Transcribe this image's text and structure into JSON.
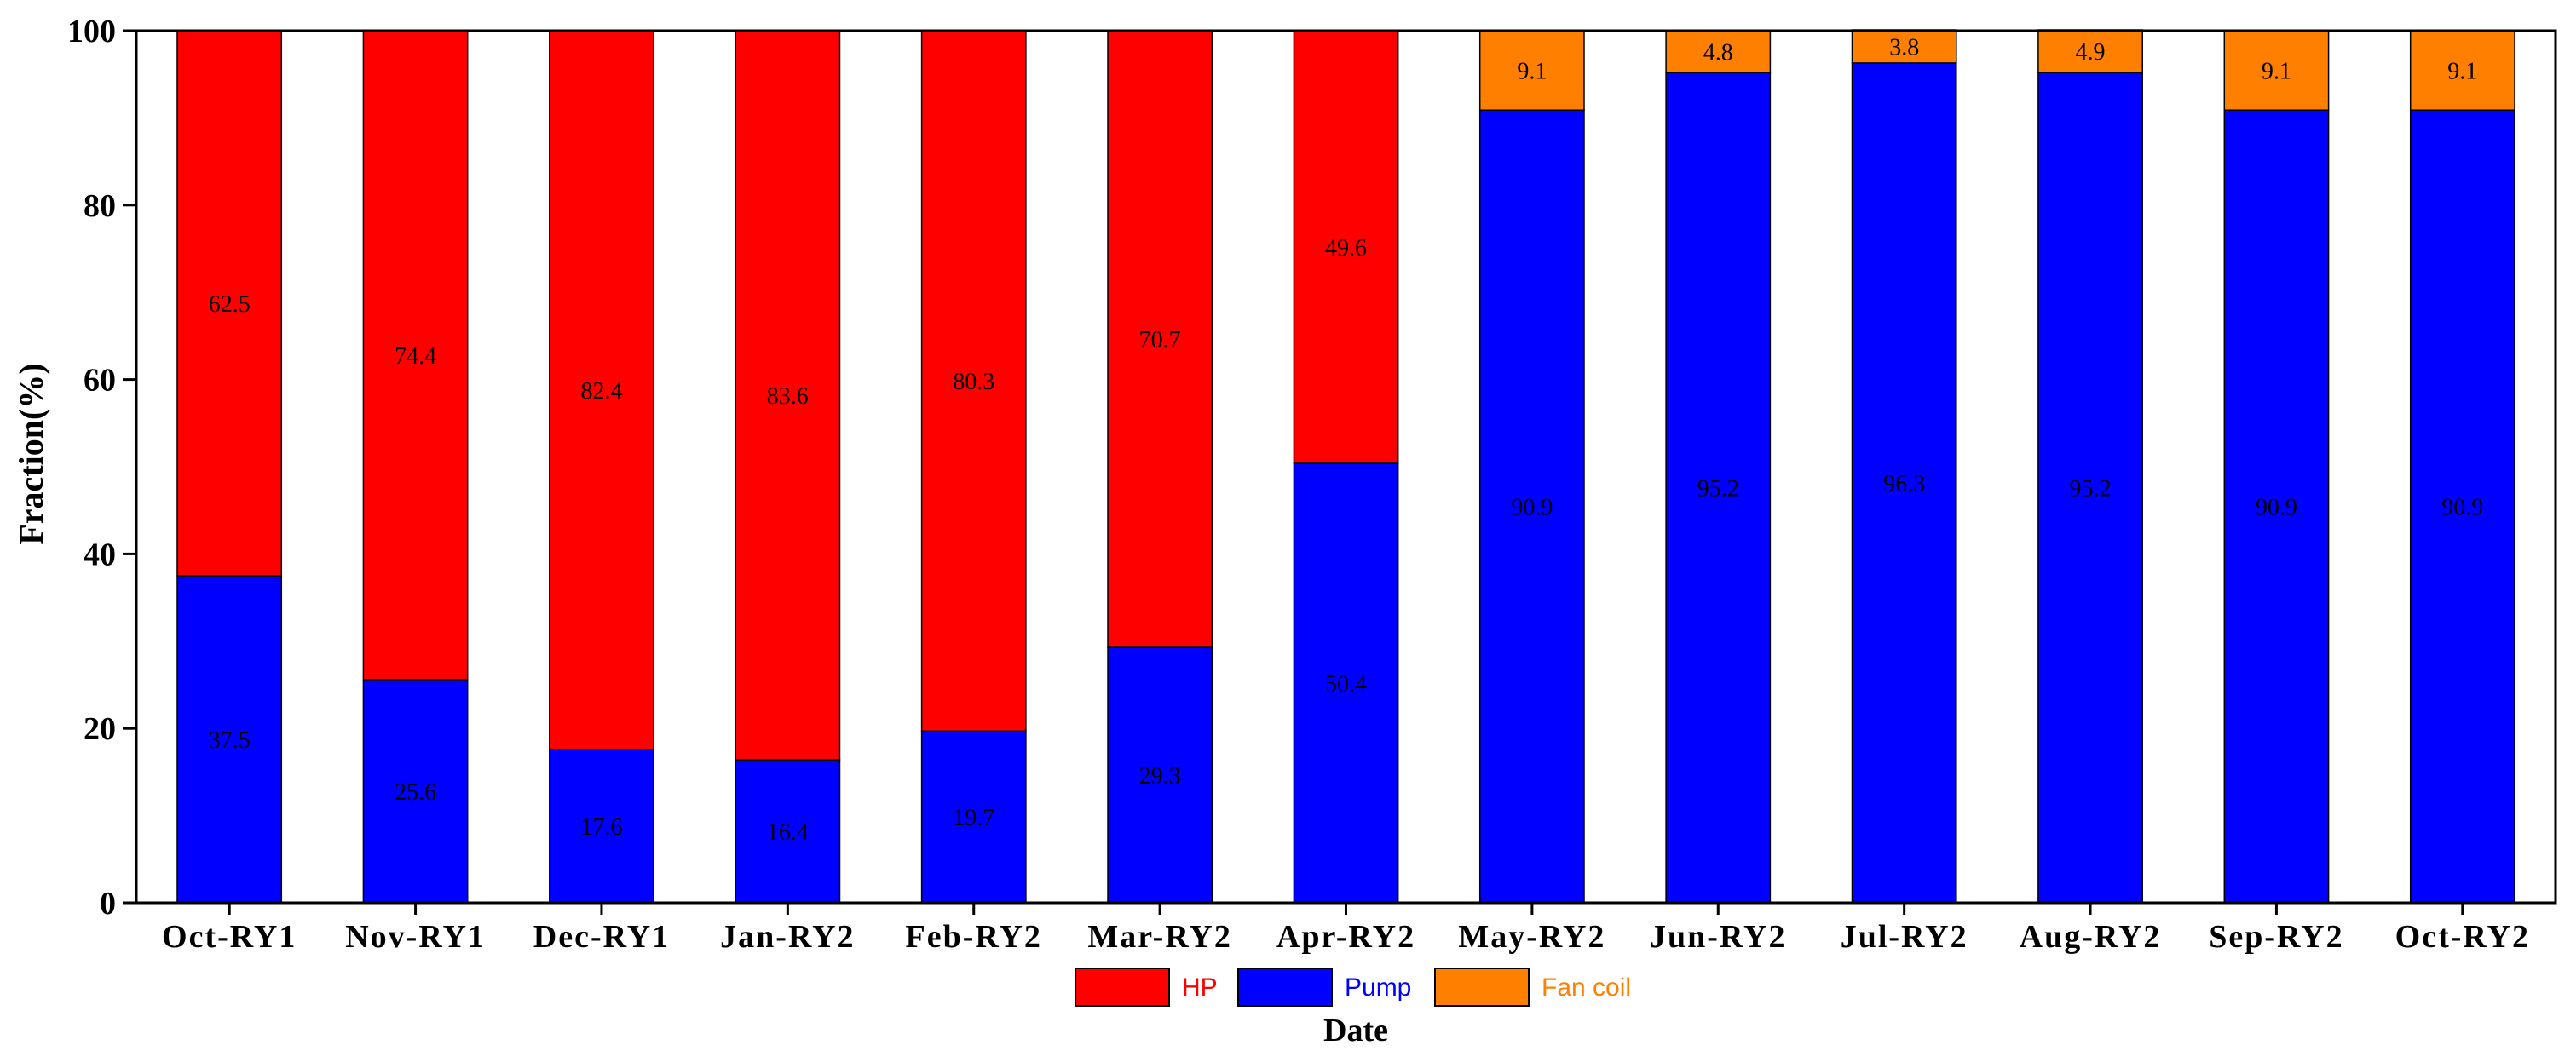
{
  "chart_data": {
    "type": "bar",
    "stacked": true,
    "categories": [
      "Oct-RY1",
      "Nov-RY1",
      "Dec-RY1",
      "Jan-RY2",
      "Feb-RY2",
      "Mar-RY2",
      "Apr-RY2",
      "May-RY2",
      "Jun-RY2",
      "Jul-RY2",
      "Aug-RY2",
      "Sep-RY2",
      "Oct-RY2"
    ],
    "category_labels": [
      "Oct-RY1",
      "Nov-RY1",
      "Dec-RY1",
      "Jan-RY2",
      "Feb-RY2",
      "Mar-RY2",
      "Apr-RY2",
      "May-RY2",
      "Jun-RY2",
      "Jul-RY2",
      "Aug-RY2",
      "Sep-RY2",
      "Oct-RY2"
    ],
    "series": [
      {
        "name": "Pump",
        "color": "#0000ff",
        "values": [
          37.5,
          25.6,
          17.6,
          16.4,
          19.7,
          29.3,
          50.4,
          90.9,
          95.2,
          96.3,
          95.2,
          90.9,
          90.9
        ],
        "labels": [
          "37.5",
          "25.6",
          "17.6",
          "16.4",
          "19.7",
          "29.3",
          "50.4",
          "90.9",
          "95.2",
          "96.3",
          "95.2",
          "90.9",
          "90.9"
        ]
      },
      {
        "name": "HP",
        "color": "#ff0000",
        "values": [
          62.5,
          74.4,
          82.4,
          83.6,
          80.3,
          70.7,
          49.6,
          0,
          0,
          0,
          0,
          0,
          0
        ],
        "labels": [
          "62.5",
          "74.4",
          "82.4",
          "83.6",
          "80.3",
          "70.7",
          "49.6",
          "",
          "",
          "",
          "",
          "",
          ""
        ]
      },
      {
        "name": "Fan coil",
        "color": "#ff8000",
        "values": [
          0,
          0,
          0,
          0,
          0,
          0,
          0,
          9.1,
          4.8,
          3.8,
          4.9,
          9.1,
          9.1
        ],
        "labels": [
          "",
          "",
          "",
          "",
          "",
          "",
          "",
          "9.1",
          "4.8",
          "3.8",
          "4.9",
          "9.1",
          "9.1"
        ]
      }
    ],
    "legend_order": [
      "HP",
      "Pump",
      "Fan coil"
    ],
    "xlabel": "Date",
    "ylabel": "Fraction(%)",
    "ylim": [
      0,
      100
    ],
    "yticks": [
      "0",
      "20",
      "40",
      "60",
      "80",
      "100"
    ],
    "legend_position": "bottom-center",
    "grid": false
  }
}
